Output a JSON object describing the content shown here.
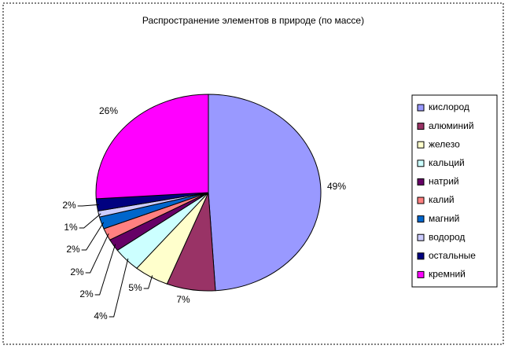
{
  "chart_data": {
    "type": "pie",
    "title": "Распространение элементов в природе (по массе)",
    "categories": [
      "кислород",
      "алюминий",
      "железо",
      "кальций",
      "натрий",
      "калий",
      "магний",
      "водород",
      "остальные",
      "кремний"
    ],
    "values": [
      49,
      7,
      5,
      4,
      2,
      2,
      2,
      1,
      2,
      26
    ],
    "value_labels": [
      "49%",
      "7%",
      "5%",
      "4%",
      "2%",
      "2%",
      "2%",
      "1%",
      "2%",
      "26%"
    ],
    "colors": [
      "#9999ff",
      "#993366",
      "#ffffcc",
      "#ccffff",
      "#660066",
      "#ff8080",
      "#0066cc",
      "#ccccff",
      "#000080",
      "#ff00ff"
    ],
    "legend": "right"
  }
}
